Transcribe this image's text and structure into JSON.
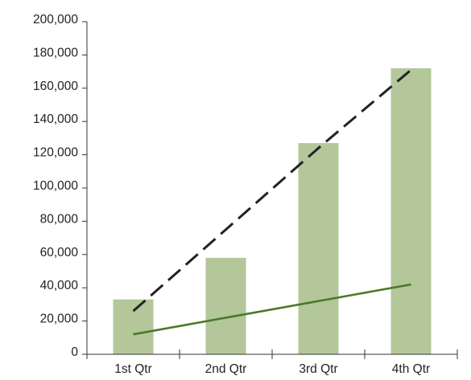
{
  "chart_data": {
    "type": "bar",
    "title": "",
    "xlabel": "",
    "ylabel": "",
    "categories": [
      "1st Qtr",
      "2nd Qtr",
      "3rd Qtr",
      "4th Qtr"
    ],
    "ylim": [
      0,
      200000
    ],
    "yticks": [
      0,
      20000,
      40000,
      60000,
      80000,
      100000,
      120000,
      140000,
      160000,
      180000,
      200000
    ],
    "ytick_labels": [
      "0",
      "20,000",
      "40,000",
      "60,000",
      "80,000",
      "100,000",
      "120,000",
      "140,000",
      "160,000",
      "180,000",
      "200,000"
    ],
    "grid": false,
    "legend": "none",
    "series": [
      {
        "type": "bar",
        "values": [
          33000,
          58000,
          127000,
          172000
        ],
        "color": "#b3c79b"
      },
      {
        "type": "line",
        "values": [
          12000,
          22000,
          32000,
          42000
        ],
        "color": "#4a7a28",
        "dash": "solid"
      },
      {
        "type": "line",
        "values": [
          26000,
          75000,
          124000,
          171000
        ],
        "color": "#222222",
        "dash": "dashed"
      }
    ]
  }
}
